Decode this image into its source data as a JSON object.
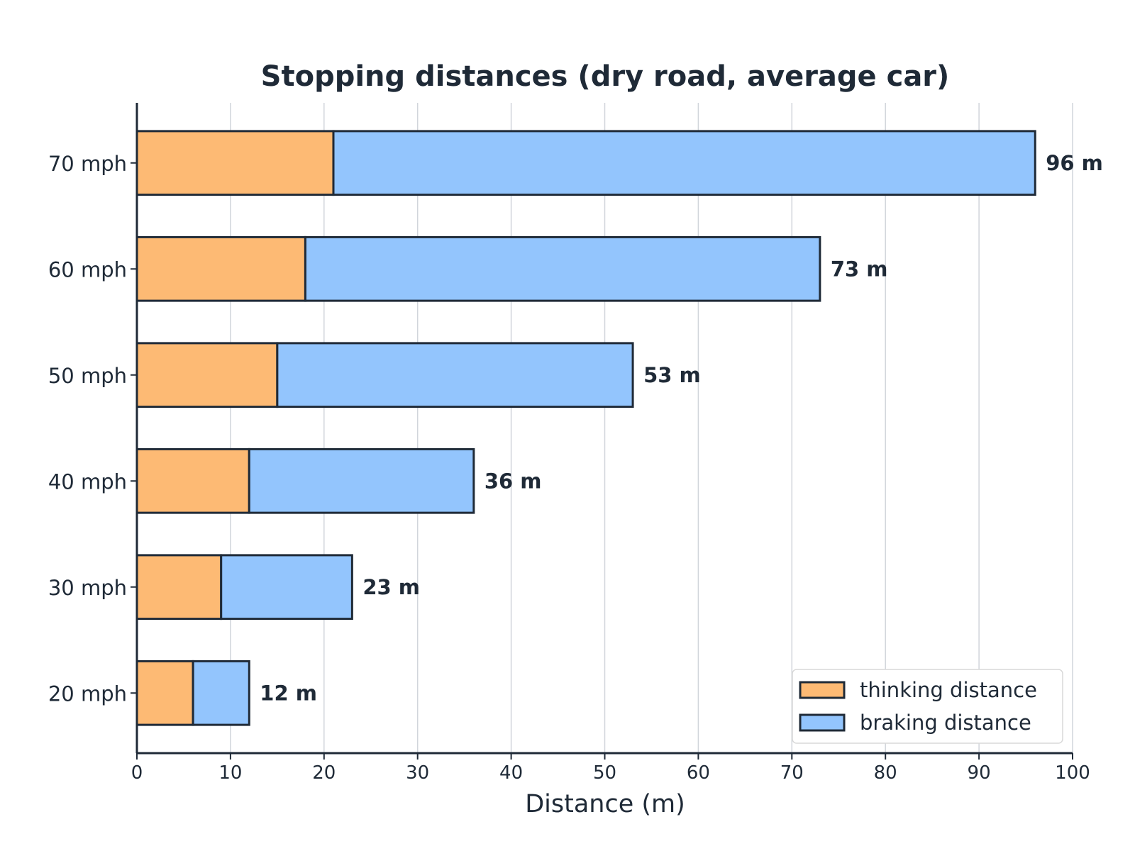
{
  "chart_data": {
    "type": "bar",
    "orientation": "horizontal",
    "stacked": true,
    "title": "Stopping distances (dry road, average car)",
    "xlabel": "Distance (m)",
    "ylabel": "",
    "xlim": [
      0,
      100
    ],
    "x_ticks": [
      0,
      10,
      20,
      30,
      40,
      50,
      60,
      70,
      80,
      90,
      100
    ],
    "grid": "vertical",
    "legend_position": "bottom-right",
    "categories": [
      "20 mph",
      "30 mph",
      "40 mph",
      "50 mph",
      "60 mph",
      "70 mph"
    ],
    "series": [
      {
        "name": "thinking distance",
        "color": "#fdba74",
        "values": [
          6,
          9,
          12,
          15,
          18,
          21
        ]
      },
      {
        "name": "braking distance",
        "color": "#93c5fd",
        "values": [
          6,
          14,
          24,
          38,
          55,
          75
        ]
      }
    ],
    "totals": [
      12,
      23,
      36,
      53,
      73,
      96
    ],
    "total_labels": [
      "12 m",
      "23 m",
      "36 m",
      "53 m",
      "73 m",
      "96 m"
    ],
    "colors": {
      "text": "#1f2a37",
      "grid": "#d1d5db",
      "edge": "#1f2a37"
    }
  }
}
